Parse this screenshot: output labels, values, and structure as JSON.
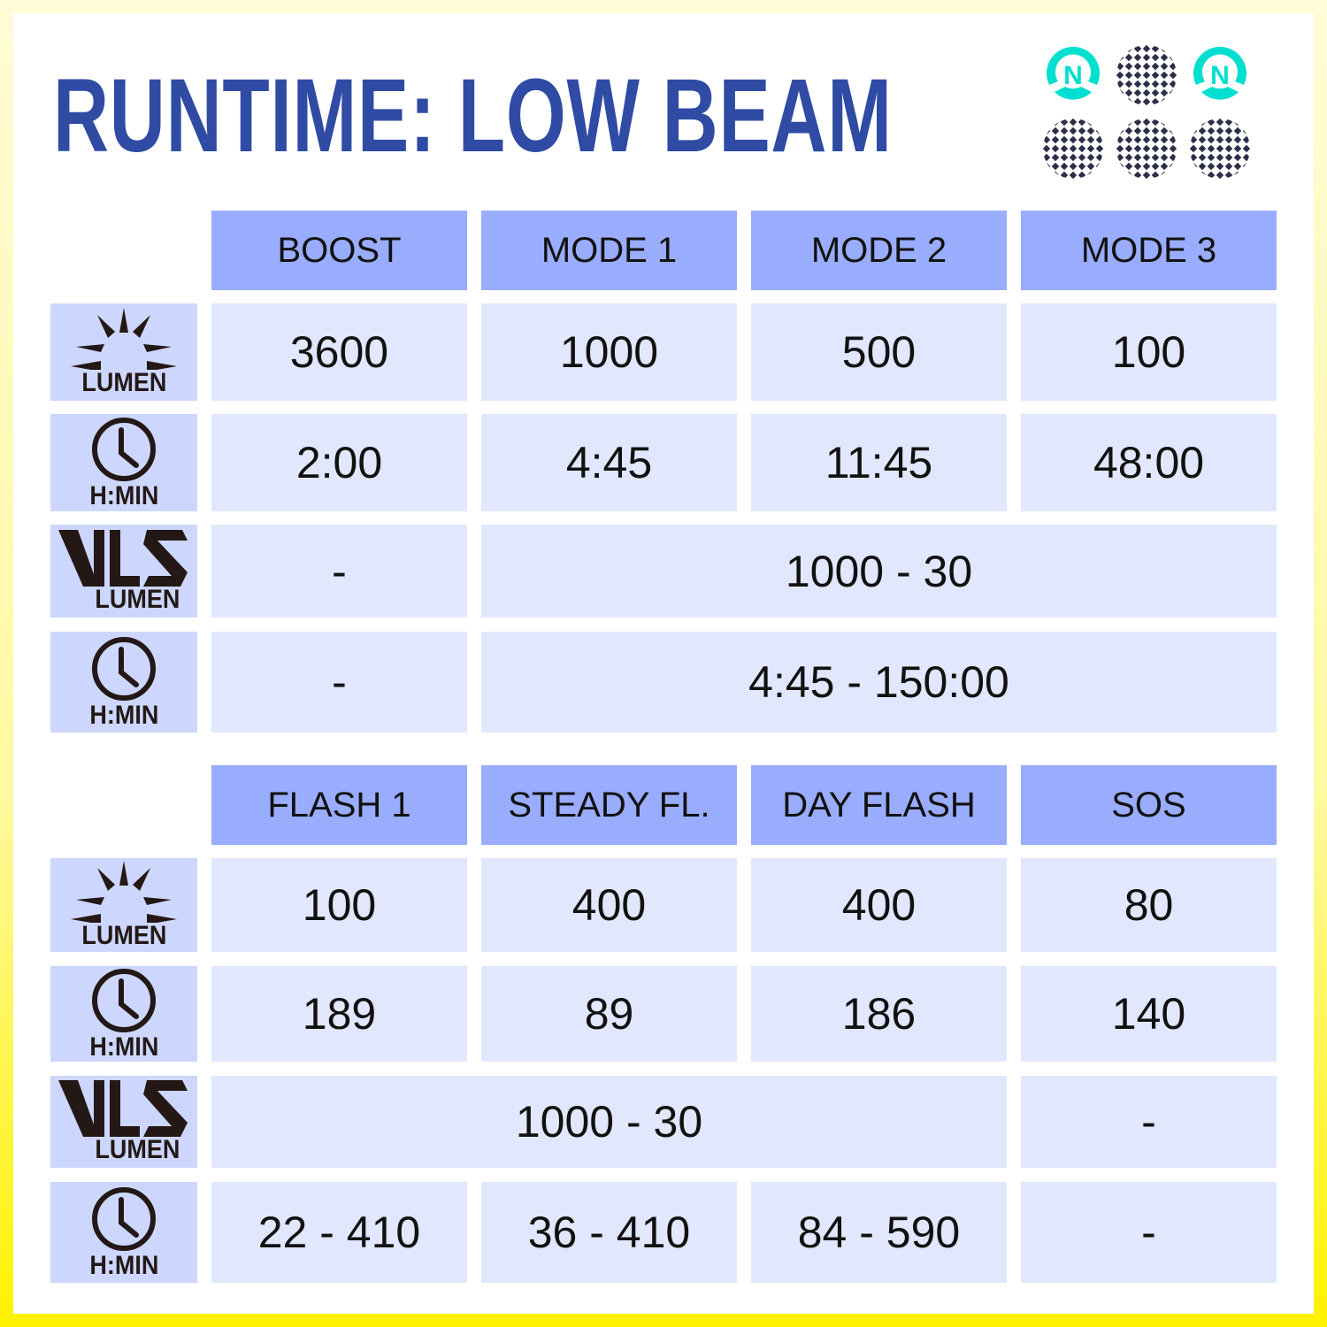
{
  "title": "RUNTIME: LOW BEAM",
  "colors": {
    "title": "#2f4ba3",
    "header": "#99acfd",
    "cell": "#e1e7fc",
    "icon_cell": "#cdd7fe",
    "badge": "#00dfd0"
  },
  "badges": [
    {
      "icon": "n-logo-icon",
      "letter": "N"
    },
    {
      "icon": "mesh-pattern-icon"
    },
    {
      "icon": "n-logo-icon",
      "letter": "N"
    },
    {
      "icon": "mesh-pattern-icon"
    },
    {
      "icon": "mesh-pattern-icon"
    },
    {
      "icon": "mesh-pattern-icon"
    }
  ],
  "icon_labels": {
    "lumen": "LUMEN",
    "time": "H:MIN",
    "vls": "LUMEN"
  },
  "tables": [
    {
      "headers": [
        "BOOST",
        "MODE 1",
        "MODE 2",
        "MODE 3"
      ],
      "rows": [
        {
          "icon": "lumen",
          "cells": [
            {
              "v": "3600"
            },
            {
              "v": "1000"
            },
            {
              "v": "500"
            },
            {
              "v": "100"
            }
          ]
        },
        {
          "icon": "time",
          "cells": [
            {
              "v": "2:00"
            },
            {
              "v": "4:45"
            },
            {
              "v": "11:45"
            },
            {
              "v": "48:00"
            }
          ]
        },
        {
          "icon": "vls",
          "cells": [
            {
              "v": "-"
            },
            {
              "v": "1000 - 30",
              "span": 3
            }
          ]
        },
        {
          "icon": "time",
          "cells": [
            {
              "v": "-"
            },
            {
              "v": "4:45 - 150:00",
              "span": 3
            }
          ]
        }
      ]
    },
    {
      "headers": [
        "FLASH 1",
        "STEADY FL.",
        "DAY FLASH",
        "SOS"
      ],
      "rows": [
        {
          "icon": "lumen",
          "cells": [
            {
              "v": "100"
            },
            {
              "v": "400"
            },
            {
              "v": "400"
            },
            {
              "v": "80"
            }
          ]
        },
        {
          "icon": "time",
          "cells": [
            {
              "v": "189"
            },
            {
              "v": "89"
            },
            {
              "v": "186"
            },
            {
              "v": "140"
            }
          ]
        },
        {
          "icon": "vls",
          "cells": [
            {
              "v": "1000 - 30",
              "span": 3
            },
            {
              "v": "-"
            }
          ]
        },
        {
          "icon": "time",
          "cells": [
            {
              "v": "22 - 410"
            },
            {
              "v": "36 - 410"
            },
            {
              "v": "84 - 590"
            },
            {
              "v": "-"
            }
          ]
        }
      ]
    }
  ]
}
